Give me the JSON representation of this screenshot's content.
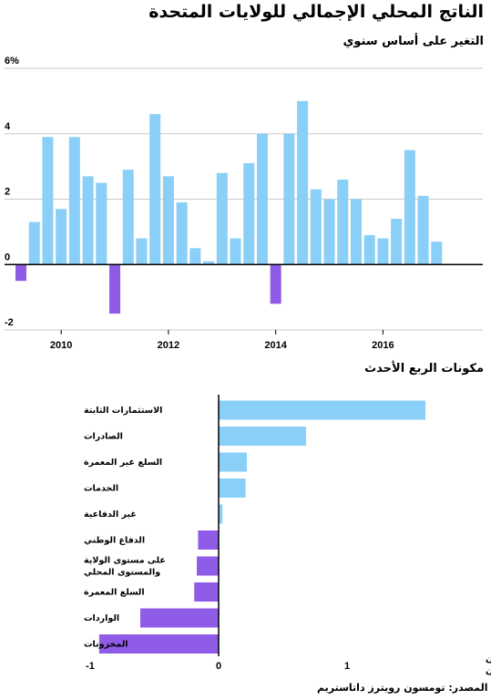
{
  "header": {
    "title": "الناتج المحلي الإجمالي للولايات المتحدة",
    "subtitle": "التغير على أساس سنوي"
  },
  "source": "المصدر: تومسون رويترز داتاستريم",
  "colors": {
    "positive": "#89cff8",
    "negative": "#8f5ce8",
    "grid": "#c8c8c8",
    "axis": "#000000"
  },
  "chart_data": [
    {
      "type": "bar",
      "title": "الناتج المحلي الإجمالي للولايات المتحدة",
      "subtitle": "التغير على أساس سنوي",
      "x": [
        2009.25,
        2009.5,
        2009.75,
        2010.0,
        2010.25,
        2010.5,
        2010.75,
        2011.0,
        2011.25,
        2011.5,
        2011.75,
        2012.0,
        2012.25,
        2012.5,
        2012.75,
        2013.0,
        2013.25,
        2013.5,
        2013.75,
        2014.0,
        2014.25,
        2014.5,
        2014.75,
        2015.0,
        2015.25,
        2015.5,
        2015.75,
        2016.0,
        2016.25,
        2016.5,
        2016.75,
        2017.0,
        2017.25
      ],
      "values": [
        -0.5,
        1.3,
        3.9,
        1.7,
        3.9,
        2.7,
        2.5,
        -1.5,
        2.9,
        0.8,
        4.6,
        2.7,
        1.9,
        0.5,
        0.1,
        2.8,
        0.8,
        3.1,
        4.0,
        -1.2,
        4.0,
        5.0,
        2.3,
        2.0,
        2.6,
        2.0,
        0.9,
        0.8,
        1.4,
        3.5,
        2.1,
        0.7,
        null
      ],
      "xticks": [
        "2010",
        "2012",
        "2014",
        "2016"
      ],
      "yticks": [
        "6%",
        "4",
        "2",
        "0",
        "-2"
      ],
      "ylim": [
        -2,
        6
      ],
      "grid": true
    },
    {
      "type": "bar",
      "orientation": "horizontal",
      "title": "مكونات الربع الأحدث",
      "categories": [
        [
          "الاستثمارات الثابتة"
        ],
        [
          "الصادرات"
        ],
        [
          "السلع غير المعمرة"
        ],
        [
          "الخدمات"
        ],
        [
          "غير الدفاعية"
        ],
        [
          "الدفاع الوطني"
        ],
        [
          "على مستوى الولاية",
          "والمستوى المحلي"
        ],
        [
          "السلع المعمرة"
        ],
        [
          "الواردات"
        ],
        [
          "المخزونات"
        ]
      ],
      "values": [
        1.61,
        0.68,
        0.22,
        0.21,
        0.03,
        -0.16,
        -0.17,
        -0.19,
        -0.61,
        -0.93
      ],
      "xticks": [
        "-1",
        "0",
        "1"
      ],
      "xlim": [
        -1,
        1.61
      ],
      "unit_label": [
        "نقطتان",
        "مئويتان"
      ]
    }
  ]
}
